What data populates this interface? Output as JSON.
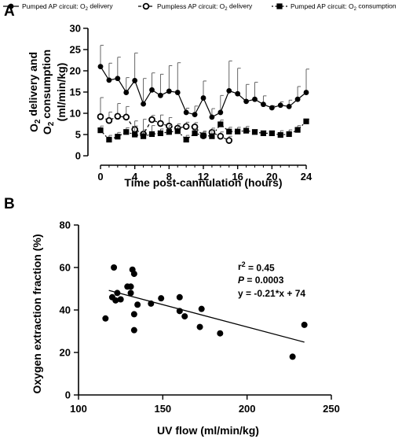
{
  "chart_data": [
    {
      "panel": "A",
      "type": "line",
      "xlabel": "Time post-cannulation (hours)",
      "ylabel": [
        "O",
        "2",
        " delivery and",
        "O",
        "2",
        " consumption",
        "(ml/min/kg)"
      ],
      "xlim": [
        0,
        24
      ],
      "ylim": [
        0,
        30
      ],
      "xticks": [
        "0",
        "4",
        "8",
        "12",
        "16",
        "20",
        "24"
      ],
      "yticks": [
        "0",
        "5",
        "10",
        "15",
        "20",
        "25",
        "30"
      ],
      "legend_position": "top",
      "series": [
        {
          "name": [
            "Pumped AP circuit: O",
            "2",
            " delivery"
          ],
          "marker": "filled-circle",
          "line": "solid",
          "x": [
            0,
            1,
            2,
            3,
            4,
            5,
            6,
            7,
            8,
            9,
            10,
            11,
            12,
            13,
            14,
            15,
            16,
            17,
            18,
            19,
            20,
            21,
            22,
            23,
            24
          ],
          "y": [
            21,
            17.8,
            18.2,
            14.9,
            17.7,
            12.2,
            15.5,
            14.2,
            15.2,
            14.9,
            10.2,
            9.7,
            13.6,
            9.1,
            10.2,
            15.3,
            14.6,
            12.8,
            13.3,
            12.1,
            11.3,
            11.9,
            11.6,
            13.3,
            14.9
          ],
          "error": [
            5,
            4,
            5,
            3.5,
            6.5,
            6,
            4,
            5,
            6,
            7,
            1,
            2,
            4,
            2,
            4,
            7,
            6,
            4,
            4,
            2,
            0.5,
            0.8,
            1.5,
            3,
            5.5
          ]
        },
        {
          "name": [
            "Pumpless AP circuit: O",
            "2",
            " delivery"
          ],
          "marker": "open-circle",
          "line": "dashed",
          "x": [
            0,
            1,
            2,
            3,
            4,
            5,
            6,
            7,
            8,
            9,
            10,
            11,
            12,
            13,
            14,
            15
          ],
          "y": [
            9.2,
            8.3,
            9.3,
            9.1,
            6.2,
            5.1,
            8.5,
            7.6,
            7,
            6.5,
            6.9,
            6.8,
            4.7,
            5.5,
            4.6,
            3.6
          ],
          "error": [
            4.5,
            2,
            3,
            2.5,
            2,
            1,
            1,
            2,
            2,
            1,
            1,
            1,
            1,
            1,
            1,
            1
          ]
        },
        {
          "name": [
            "Pumped AP circuit: O",
            "2",
            " consumption"
          ],
          "marker": "filled-square",
          "line": "dotted",
          "x": [
            0,
            1,
            2,
            3,
            4,
            5,
            6,
            7,
            8,
            9,
            10,
            11,
            12,
            13,
            14,
            15,
            16,
            17,
            18,
            19,
            20,
            21,
            22,
            23,
            24
          ],
          "y": [
            6,
            3.8,
            4.5,
            5.6,
            5,
            4.6,
            5.1,
            5.3,
            5.6,
            5.8,
            3.8,
            5.3,
            4.8,
            4.6,
            7.4,
            5.7,
            5.7,
            5.9,
            5.6,
            5.3,
            5.3,
            4.9,
            5.1,
            6.1,
            8.1
          ],
          "error": [
            1,
            1,
            1,
            1,
            2,
            4,
            2,
            1,
            1.5,
            1,
            1,
            1,
            1,
            1.5,
            1,
            1,
            1,
            1,
            0.5,
            0.5,
            0.5,
            1,
            1,
            1,
            0.5
          ]
        }
      ]
    },
    {
      "panel": "B",
      "type": "scatter",
      "xlabel": "UV flow (ml/min/kg)",
      "ylabel": "Oxygen extraction fraction (%)",
      "xlim": [
        100,
        250
      ],
      "ylim": [
        0,
        80
      ],
      "xticks": [
        "100",
        "150",
        "200",
        "250"
      ],
      "yticks": [
        "0",
        "20",
        "40",
        "60",
        "80"
      ],
      "stats": {
        "r_squared": [
          "r",
          "2",
          " = 0.45"
        ],
        "p_value": [
          "P",
          " = 0.0003"
        ],
        "equation": "y = -0.21*x + 74"
      },
      "regression": {
        "slope": -0.21,
        "intercept": 74,
        "x_range": [
          118,
          234
        ]
      },
      "points": [
        [
          116,
          36
        ],
        [
          120,
          46
        ],
        [
          121,
          60
        ],
        [
          122,
          44.5
        ],
        [
          123,
          48
        ],
        [
          125,
          45
        ],
        [
          129,
          51
        ],
        [
          131,
          48
        ],
        [
          131,
          51
        ],
        [
          132,
          59
        ],
        [
          133,
          57
        ],
        [
          133,
          38
        ],
        [
          133,
          30.5
        ],
        [
          135,
          42.5
        ],
        [
          143,
          43
        ],
        [
          149,
          45.5
        ],
        [
          160,
          46
        ],
        [
          160,
          39.5
        ],
        [
          163,
          37
        ],
        [
          172,
          32
        ],
        [
          173,
          40.5
        ],
        [
          184,
          29
        ],
        [
          227,
          18
        ],
        [
          234,
          33
        ]
      ]
    }
  ]
}
